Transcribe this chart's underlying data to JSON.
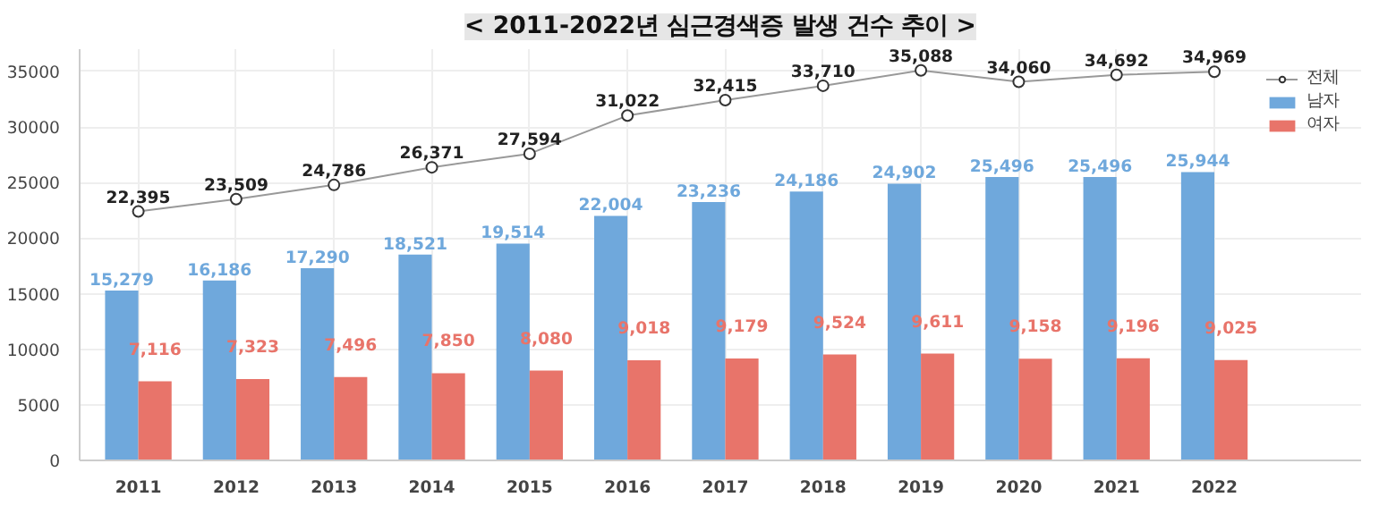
{
  "chart_data": {
    "type": "bar",
    "title": "< 2011-2022년 심근경색증 발생 건수 추이 >",
    "categories": [
      "2011",
      "2012",
      "2013",
      "2014",
      "2015",
      "2016",
      "2017",
      "2018",
      "2019",
      "2020",
      "2021",
      "2022"
    ],
    "series": [
      {
        "name": "전체",
        "type": "line",
        "marker": "circle",
        "color": "#999999",
        "values": [
          22395,
          23509,
          24786,
          26371,
          27594,
          31022,
          32415,
          33710,
          35088,
          34060,
          34692,
          34969
        ],
        "value_labels": [
          "22,395",
          "23,509",
          "24,786",
          "26,371",
          "27,594",
          "31,022",
          "32,415",
          "33,710",
          "35,088",
          "34,060",
          "34,692",
          "34,969"
        ]
      },
      {
        "name": "남자",
        "color": "#6fa8dc",
        "values": [
          15279,
          16186,
          17290,
          18521,
          19514,
          22004,
          23236,
          24186,
          24902,
          25496,
          25496,
          25944
        ],
        "value_labels": [
          "15,279",
          "16,186",
          "17,290",
          "18,521",
          "19,514",
          "22,004",
          "23,236",
          "24,186",
          "24,902",
          "25,496",
          "25,496",
          "25,944"
        ]
      },
      {
        "name": "여자",
        "color": "#e8746a",
        "values": [
          7116,
          7323,
          7496,
          7850,
          8080,
          9018,
          9179,
          9524,
          9611,
          9158,
          9196,
          9025
        ],
        "value_labels": [
          "7,116",
          "7,323",
          "7,496",
          "7,850",
          "8,080",
          "9,018",
          "9,179",
          "9,524",
          "9,611",
          "9,158",
          "9,196",
          "9,025"
        ]
      }
    ],
    "ylim": [
      0,
      37000
    ],
    "yticks": [
      0,
      5000,
      10000,
      15000,
      20000,
      25000,
      30000,
      35000
    ],
    "grid": true,
    "legend": "top right"
  }
}
